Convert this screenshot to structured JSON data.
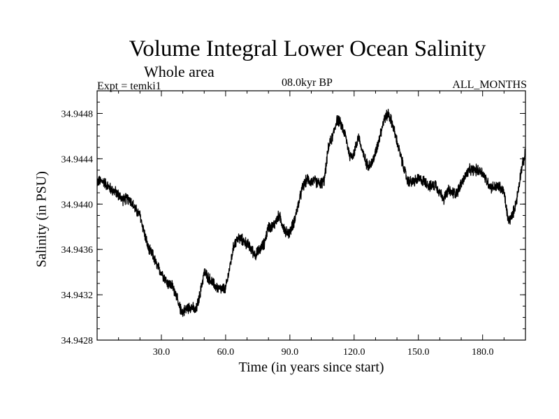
{
  "chart_data": {
    "type": "line",
    "title": "Volume Integral Lower Ocean Salinity",
    "subtitle": "Whole area",
    "experiment": "Expt = temki1",
    "period": "08.0kyr BP",
    "months": "ALL_MONTHS",
    "xlabel": "Time (in years since start)",
    "ylabel": "Salinity (in PSU)",
    "xlim": [
      0,
      200
    ],
    "ylim": [
      34.9428,
      34.945
    ],
    "x_ticks": [
      30,
      60,
      90,
      120,
      150,
      180
    ],
    "x_tick_labels": [
      "30.0",
      "60.0",
      "90.0",
      "120.0",
      "150.0",
      "180.0"
    ],
    "y_ticks": [
      34.9428,
      34.9432,
      34.9436,
      34.944,
      34.9444,
      34.9448
    ],
    "y_tick_labels": [
      "34.9428",
      "34.9432",
      "34.9436",
      "34.9440",
      "34.9444",
      "34.9448"
    ],
    "grid": false,
    "series": [
      {
        "name": "Salinity",
        "color": "#000000",
        "x": [
          0,
          3,
          6,
          9,
          12,
          15,
          18,
          20,
          22,
          24,
          26,
          28,
          30,
          33,
          35,
          37,
          38,
          40,
          42,
          44,
          46,
          48,
          50,
          52,
          55,
          57,
          60,
          62,
          64,
          66,
          68,
          70,
          72,
          74,
          76,
          78,
          80,
          82,
          85,
          88,
          90,
          92,
          94,
          96,
          98,
          100,
          102,
          104,
          106,
          108,
          110,
          112,
          114,
          116,
          118,
          120,
          122,
          124,
          126,
          128,
          130,
          132,
          134,
          136,
          138,
          140,
          142,
          145,
          148,
          150,
          153,
          156,
          158,
          160,
          162,
          164,
          166,
          168,
          170,
          172,
          174,
          176,
          178,
          180,
          182,
          184,
          186,
          188,
          190,
          192,
          194,
          196,
          198,
          200
        ],
        "values": [
          34.9442,
          34.9442,
          34.94414,
          34.9441,
          34.94404,
          34.94405,
          34.94395,
          34.9439,
          34.94375,
          34.9436,
          34.94355,
          34.94345,
          34.9434,
          34.9433,
          34.94328,
          34.9432,
          34.9431,
          34.94305,
          34.94308,
          34.9431,
          34.94305,
          34.9432,
          34.9434,
          34.94335,
          34.94328,
          34.94325,
          34.94325,
          34.94345,
          34.94365,
          34.9437,
          34.94368,
          34.94365,
          34.9436,
          34.94355,
          34.9436,
          34.94365,
          34.9438,
          34.9438,
          34.9439,
          34.94375,
          34.94375,
          34.94385,
          34.944,
          34.94415,
          34.94422,
          34.9442,
          34.9442,
          34.94418,
          34.9442,
          34.9445,
          34.9446,
          34.94475,
          34.9447,
          34.9446,
          34.94442,
          34.94445,
          34.9446,
          34.94445,
          34.94435,
          34.94435,
          34.94445,
          34.9446,
          34.94475,
          34.9448,
          34.9447,
          34.94455,
          34.9444,
          34.9442,
          34.9442,
          34.94422,
          34.9442,
          34.94415,
          34.94418,
          34.9441,
          34.94405,
          34.94412,
          34.9441,
          34.9441,
          34.94418,
          34.94425,
          34.9443,
          34.9443,
          34.9443,
          34.94428,
          34.9442,
          34.94415,
          34.94415,
          34.94415,
          34.9441,
          34.94385,
          34.9439,
          34.94405,
          34.9443,
          34.94445
        ]
      }
    ]
  }
}
